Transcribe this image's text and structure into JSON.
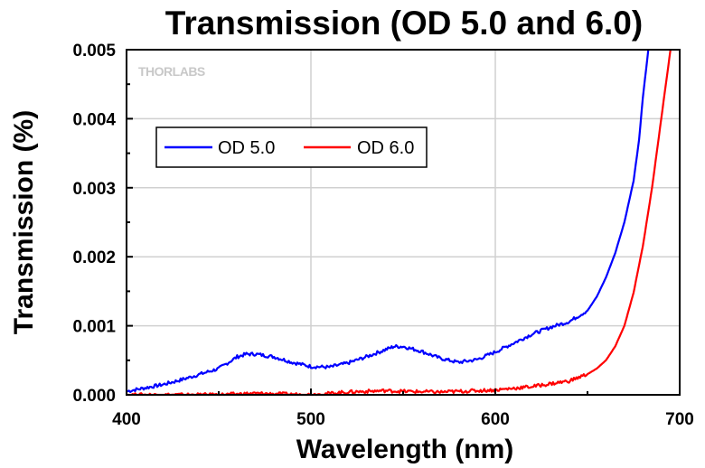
{
  "chart_data": {
    "type": "line",
    "title": "Transmission (OD 5.0 and 6.0)",
    "xlabel": "Wavelength (nm)",
    "ylabel": "Transmission (%)",
    "xlim": [
      400,
      700
    ],
    "ylim": [
      0,
      0.005
    ],
    "x_ticks": [
      "400",
      "500",
      "600",
      "700"
    ],
    "y_ticks": [
      "0.000",
      "0.001",
      "0.002",
      "0.003",
      "0.004",
      "0.005"
    ],
    "grid": true,
    "legend_position": "upper-left",
    "watermark": "THORLABS",
    "series": [
      {
        "name": "OD 5.0",
        "color": "#0000ff",
        "x": [
          400,
          410,
          420,
          430,
          440,
          450,
          460,
          465,
          470,
          480,
          490,
          500,
          510,
          520,
          530,
          540,
          545,
          550,
          560,
          570,
          580,
          590,
          600,
          610,
          620,
          630,
          640,
          650,
          655,
          660,
          665,
          670,
          675,
          678,
          680,
          683
        ],
        "y": [
          5e-05,
          0.0001,
          0.00015,
          0.00022,
          0.0003,
          0.00038,
          0.00055,
          0.00059,
          0.00059,
          0.00055,
          0.00047,
          0.00041,
          0.0004,
          0.00046,
          0.00055,
          0.00065,
          0.0007,
          0.0007,
          0.00063,
          0.00053,
          0.00047,
          0.00051,
          0.00062,
          0.00075,
          0.00088,
          0.00098,
          0.00106,
          0.00122,
          0.00142,
          0.0017,
          0.00205,
          0.0025,
          0.0031,
          0.0037,
          0.0043,
          0.005
        ]
      },
      {
        "name": "OD 6.0",
        "color": "#ff0000",
        "x": [
          400,
          450,
          470,
          500,
          520,
          540,
          550,
          570,
          600,
          620,
          640,
          650,
          655,
          660,
          665,
          670,
          675,
          680,
          685,
          690,
          695
        ],
        "y": [
          0.0,
          0.0,
          2e-05,
          0.0,
          4e-05,
          6e-05,
          5e-05,
          4e-05,
          7e-05,
          0.00012,
          0.0002,
          0.0003,
          0.00038,
          0.0005,
          0.0007,
          0.001,
          0.00148,
          0.00215,
          0.003,
          0.004,
          0.005
        ]
      }
    ]
  }
}
